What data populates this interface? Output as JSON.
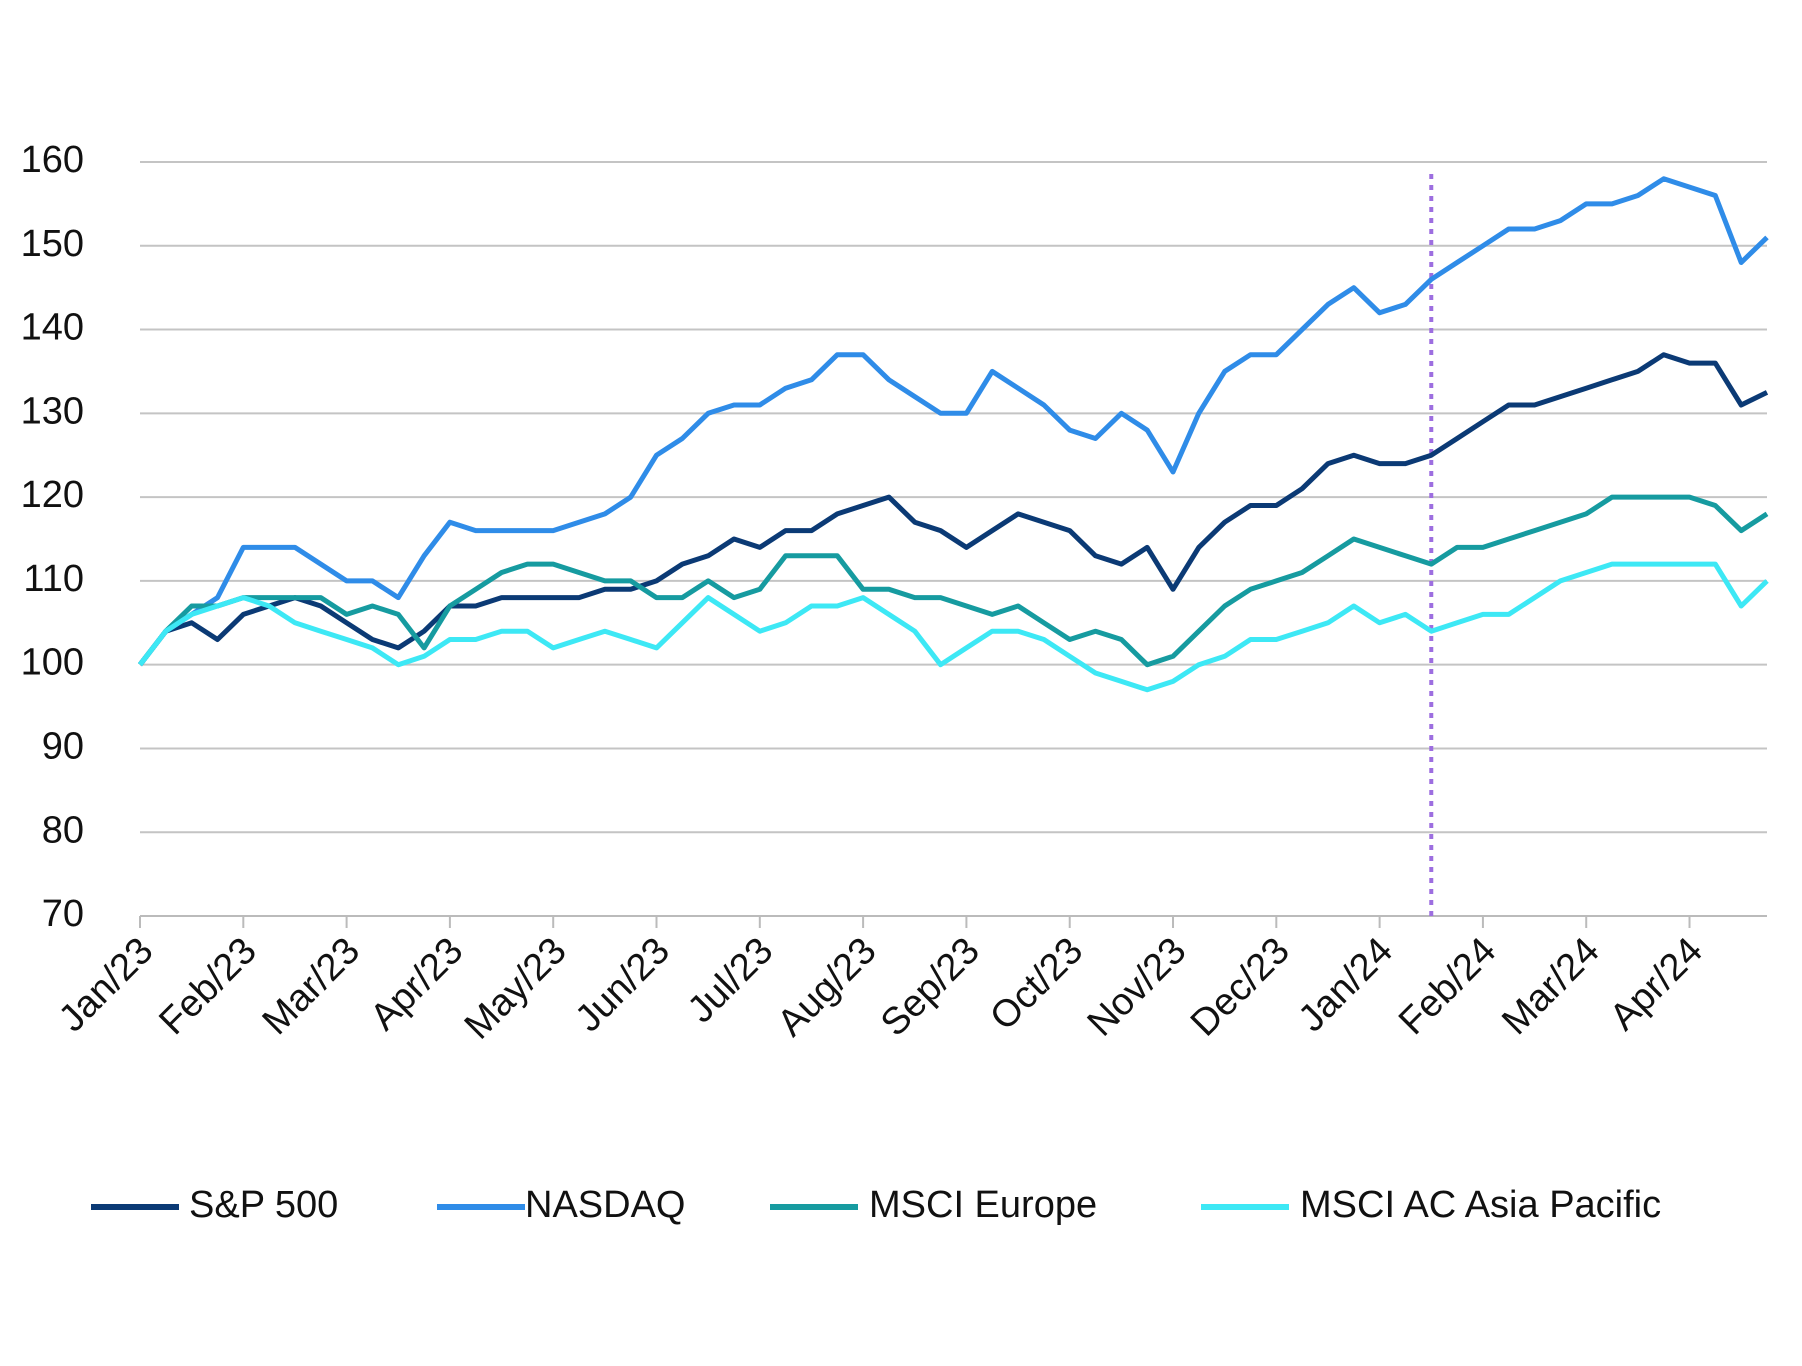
{
  "chart_data": {
    "type": "line",
    "categories": [
      "Jan/23",
      null,
      null,
      null,
      "Feb/23",
      null,
      null,
      null,
      "Mar/23",
      null,
      null,
      null,
      "Apr/23",
      null,
      null,
      null,
      "May/23",
      null,
      null,
      null,
      "Jun/23",
      null,
      null,
      null,
      "Jul/23",
      null,
      null,
      null,
      "Aug/23",
      null,
      null,
      null,
      "Sep/23",
      null,
      null,
      null,
      "Oct/23",
      null,
      null,
      null,
      "Nov/23",
      null,
      null,
      null,
      "Dec/23",
      null,
      null,
      null,
      "Jan/24",
      null,
      null,
      null,
      "Feb/24",
      null,
      null,
      null,
      "Mar/24",
      null,
      null,
      null,
      "Apr/24",
      null,
      null,
      null
    ],
    "series": [
      {
        "name": "S&P 500",
        "color": "#0b3a75",
        "values": [
          100,
          104,
          105,
          103,
          106,
          107,
          108,
          107,
          105,
          103,
          102,
          104,
          107,
          107,
          108,
          108,
          108,
          108,
          109,
          109,
          110,
          112,
          113,
          115,
          114,
          116,
          116,
          118,
          119,
          120,
          117,
          116,
          114,
          116,
          118,
          117,
          116,
          113,
          112,
          114,
          109,
          114,
          117,
          119,
          119,
          121,
          124,
          125,
          124,
          124,
          125,
          127,
          129,
          131,
          131,
          132,
          133,
          134,
          135,
          137,
          136,
          136,
          131,
          132.5
        ]
      },
      {
        "name": "NASDAQ",
        "color": "#2f8ce8",
        "values": [
          100,
          104,
          106,
          108,
          114,
          114,
          114,
          112,
          110,
          110,
          108,
          113,
          117,
          116,
          116,
          116,
          116,
          117,
          118,
          120,
          125,
          127,
          130,
          131,
          131,
          133,
          134,
          137,
          137,
          134,
          132,
          130,
          130,
          135,
          133,
          131,
          128,
          127,
          130,
          128,
          123,
          130,
          135,
          137,
          137,
          140,
          143,
          145,
          142,
          143,
          146,
          148,
          150,
          152,
          152,
          153,
          155,
          155,
          156,
          158,
          157,
          156,
          148,
          151
        ]
      },
      {
        "name": "MSCI Europe",
        "color": "#169ba0",
        "values": [
          100,
          104,
          107,
          107,
          108,
          108,
          108,
          108,
          106,
          107,
          106,
          102,
          107,
          109,
          111,
          112,
          112,
          111,
          110,
          110,
          108,
          108,
          110,
          108,
          109,
          113,
          113,
          113,
          109,
          109,
          108,
          108,
          107,
          106,
          107,
          105,
          103,
          104,
          103,
          100,
          101,
          104,
          107,
          109,
          110,
          111,
          113,
          115,
          114,
          113,
          112,
          114,
          114,
          115,
          116,
          117,
          118,
          120,
          120,
          120,
          120,
          119,
          116,
          118
        ]
      },
      {
        "name": "MSCI AC Asia Pacific",
        "color": "#3de8f5",
        "values": [
          100,
          104,
          106,
          107,
          108,
          107,
          105,
          104,
          103,
          102,
          100,
          101,
          103,
          103,
          104,
          104,
          102,
          103,
          104,
          103,
          102,
          105,
          108,
          106,
          104,
          105,
          107,
          107,
          108,
          106,
          104,
          100,
          102,
          104,
          104,
          103,
          101,
          99,
          98,
          97,
          98,
          100,
          101,
          103,
          103,
          104,
          105,
          107,
          105,
          106,
          104,
          105,
          106,
          106,
          108,
          110,
          111,
          112,
          112,
          112,
          112,
          112,
          107,
          110
        ]
      }
    ],
    "ylim": [
      70,
      160
    ],
    "yticks": [
      70,
      80,
      90,
      100,
      110,
      120,
      130,
      140,
      150,
      160
    ],
    "grid": true,
    "marker_line": {
      "x_index": 50,
      "color": "#9d6ee0"
    },
    "legend": "bottom"
  }
}
